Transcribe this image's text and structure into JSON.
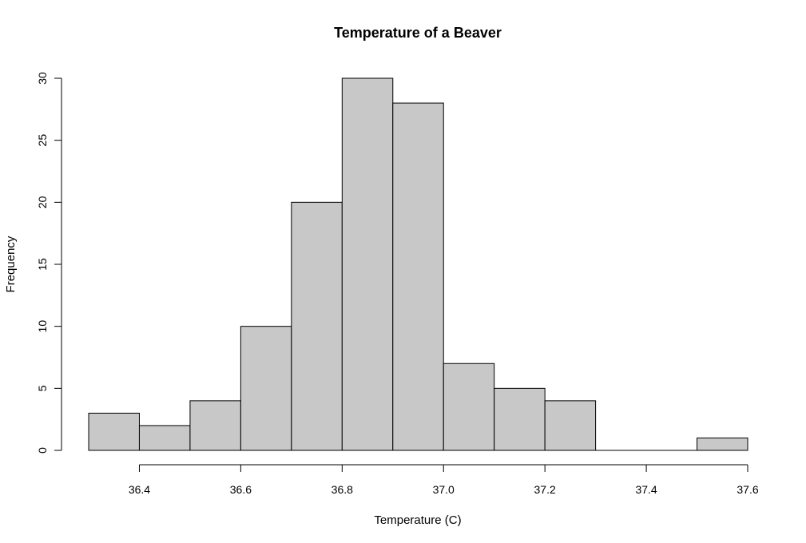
{
  "chart_data": {
    "type": "bar",
    "title": "Temperature of a Beaver",
    "xlabel": "Temperature (C)",
    "ylabel": "Frequency",
    "bins": [
      {
        "start": 36.3,
        "end": 36.4,
        "count": 3
      },
      {
        "start": 36.4,
        "end": 36.5,
        "count": 2
      },
      {
        "start": 36.5,
        "end": 36.6,
        "count": 4
      },
      {
        "start": 36.6,
        "end": 36.7,
        "count": 10
      },
      {
        "start": 36.7,
        "end": 36.8,
        "count": 20
      },
      {
        "start": 36.8,
        "end": 36.9,
        "count": 30
      },
      {
        "start": 36.9,
        "end": 37.0,
        "count": 28
      },
      {
        "start": 37.0,
        "end": 37.1,
        "count": 7
      },
      {
        "start": 37.1,
        "end": 37.2,
        "count": 5
      },
      {
        "start": 37.2,
        "end": 37.3,
        "count": 4
      },
      {
        "start": 37.3,
        "end": 37.4,
        "count": 0
      },
      {
        "start": 37.4,
        "end": 37.5,
        "count": 0
      },
      {
        "start": 37.5,
        "end": 37.6,
        "count": 1
      }
    ],
    "xlim": [
      36.3,
      37.6
    ],
    "ylim": [
      0,
      30
    ],
    "x_ticks": [
      {
        "value": 36.4,
        "label": "36.4"
      },
      {
        "value": 36.6,
        "label": "36.6"
      },
      {
        "value": 36.8,
        "label": "36.8"
      },
      {
        "value": 37.0,
        "label": "37.0"
      },
      {
        "value": 37.2,
        "label": "37.2"
      },
      {
        "value": 37.4,
        "label": "37.4"
      },
      {
        "value": 37.6,
        "label": "37.6"
      }
    ],
    "y_ticks": [
      {
        "value": 0,
        "label": "0"
      },
      {
        "value": 5,
        "label": "5"
      },
      {
        "value": 10,
        "label": "10"
      },
      {
        "value": 15,
        "label": "15"
      },
      {
        "value": 20,
        "label": "20"
      },
      {
        "value": 25,
        "label": "25"
      },
      {
        "value": 30,
        "label": "30"
      }
    ],
    "grid": false,
    "bar_color": "#c8c8c8",
    "edge_color": "#000000"
  }
}
